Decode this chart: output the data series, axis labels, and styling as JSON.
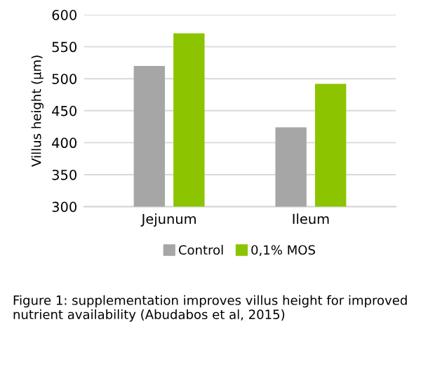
{
  "chart_data": {
    "type": "bar",
    "ylabel": "Villus height (µm)",
    "categories": [
      "Jejunum",
      "Ileum"
    ],
    "series": [
      {
        "name": "Control",
        "color": "#a6a6a6",
        "values": [
          520,
          424
        ]
      },
      {
        "name": "0,1% MOS",
        "color": "#8cc400",
        "values": [
          571,
          492
        ]
      }
    ],
    "ylim": [
      300,
      600
    ],
    "yticks": [
      300,
      350,
      400,
      450,
      500,
      550,
      600
    ],
    "grid": "y",
    "legend": "bottom",
    "annotations": [
      "Figure 1: supplementation improves villus height for improved nutrient availability (Abudabos et al, 2015)"
    ]
  }
}
